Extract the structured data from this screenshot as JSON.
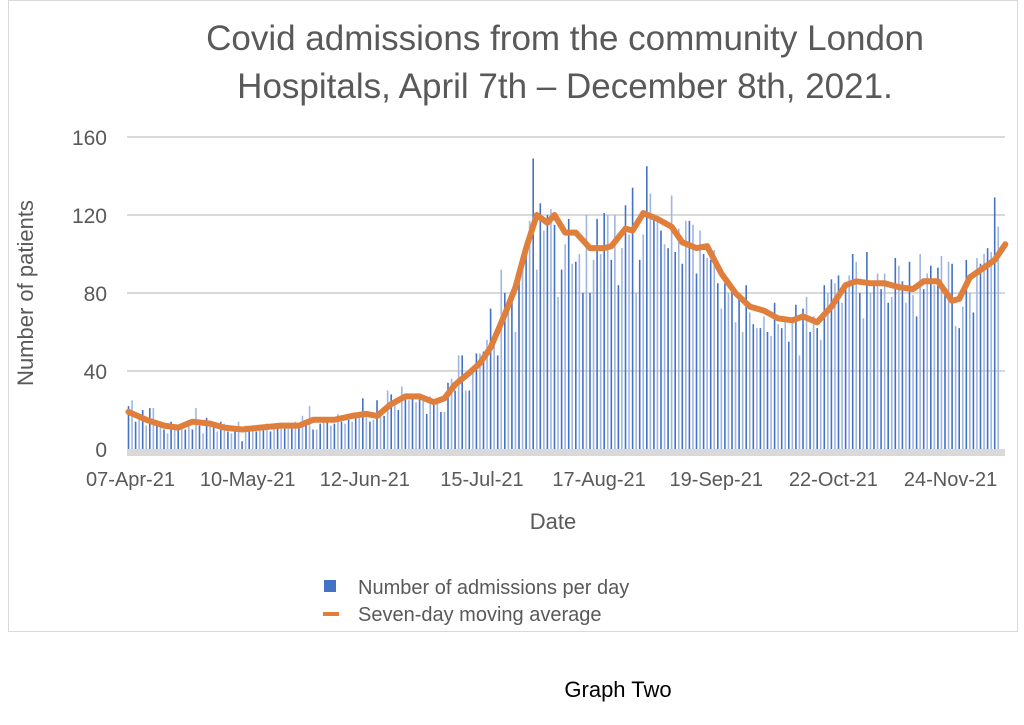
{
  "chart_data": {
    "type": "bar",
    "title_lines": [
      "Covid admissions from the community London",
      "Hospitals, April 7th – December 8th, 2021."
    ],
    "xlabel": "Date",
    "ylabel": "Number of patients",
    "ylim": [
      0,
      160
    ],
    "yticks": [
      0,
      40,
      80,
      120,
      160
    ],
    "grid": true,
    "legend_placement": "bottom",
    "start_date": "2021-04-07",
    "end_date": "2021-12-08",
    "xtick_labels": [
      "07-Apr-21",
      "10-May-21",
      "12-Jun-21",
      "15-Jul-21",
      "17-Aug-21",
      "19-Sep-21",
      "22-Oct-21",
      "24-Nov-21"
    ],
    "xtick_dates": [
      "2021-04-07",
      "2021-05-10",
      "2021-06-12",
      "2021-07-15",
      "2021-08-17",
      "2021-09-19",
      "2021-10-22",
      "2021-11-24"
    ],
    "colors": {
      "bars": "#4472c4",
      "bars_alt": "#9fb5e2",
      "moving_average": "#e07f3c",
      "text": "#595959",
      "grid": "#d9d9d9"
    },
    "series": [
      {
        "name": "Number of admissions per day",
        "type": "bar",
        "values": [
          22,
          25,
          14,
          16,
          20,
          12,
          21,
          21,
          13,
          12,
          10,
          8,
          14,
          12,
          12,
          11,
          10,
          14,
          10,
          21,
          12,
          8,
          16,
          12,
          11,
          9,
          14,
          13,
          9,
          8,
          11,
          14,
          4,
          12,
          11,
          12,
          9,
          11,
          10,
          13,
          9,
          12,
          11,
          13,
          12,
          12,
          11,
          14,
          12,
          17,
          15,
          22,
          10,
          10,
          13,
          15,
          16,
          12,
          13,
          18,
          14,
          13,
          15,
          14,
          16,
          18,
          26,
          17,
          14,
          15,
          25,
          18,
          17,
          30,
          28,
          24,
          20,
          32,
          26,
          25,
          27,
          24,
          28,
          26,
          18,
          27,
          25,
          26,
          19,
          19,
          34,
          36,
          30,
          48,
          48,
          30,
          30,
          42,
          49,
          49,
          50,
          56,
          72,
          58,
          48,
          92,
          80,
          77,
          78,
          60,
          88,
          97,
          107,
          117,
          149,
          92,
          126,
          112,
          120,
          123,
          115,
          78,
          92,
          105,
          118,
          95,
          96,
          100,
          80,
          120,
          80,
          97,
          118,
          100,
          121,
          120,
          97,
          120,
          84,
          103,
          125,
          110,
          134,
          80,
          97,
          110,
          145,
          131,
          120,
          117,
          112,
          105,
          103,
          130,
          101,
          113,
          95,
          117,
          117,
          115,
          90,
          112,
          100,
          98,
          97,
          102,
          85,
          72,
          85,
          80,
          82,
          65,
          80,
          60,
          84,
          70,
          64,
          62,
          62,
          68,
          60,
          58,
          75,
          64,
          62,
          65,
          55,
          67,
          74,
          48,
          72,
          78,
          60,
          68,
          62,
          56,
          84,
          80,
          87,
          85,
          89,
          75,
          83,
          89,
          100,
          96,
          80,
          67,
          101,
          80,
          86,
          90,
          82,
          90,
          75,
          78,
          98,
          94,
          86,
          75,
          96,
          79,
          68,
          100,
          82,
          90,
          94,
          84,
          93,
          99,
          83,
          96,
          95,
          63,
          62,
          73,
          97,
          80,
          70,
          98,
          95,
          100,
          103,
          101,
          129,
          114
        ]
      },
      {
        "name": "Seven-day moving average",
        "type": "line",
        "points": [
          [
            "2021-04-13",
            19
          ],
          [
            "2021-04-18",
            15
          ],
          [
            "2021-04-23",
            12
          ],
          [
            "2021-04-27",
            11
          ],
          [
            "2021-05-01",
            14
          ],
          [
            "2021-05-06",
            13
          ],
          [
            "2021-05-10",
            11
          ],
          [
            "2021-05-15",
            10
          ],
          [
            "2021-05-20",
            11
          ],
          [
            "2021-05-26",
            12
          ],
          [
            "2021-05-31",
            12
          ],
          [
            "2021-06-04",
            15
          ],
          [
            "2021-06-10",
            15
          ],
          [
            "2021-06-15",
            17
          ],
          [
            "2021-06-19",
            18
          ],
          [
            "2021-06-22",
            17
          ],
          [
            "2021-06-26",
            23
          ],
          [
            "2021-06-30",
            27
          ],
          [
            "2021-07-04",
            27
          ],
          [
            "2021-07-08",
            24
          ],
          [
            "2021-07-11",
            26
          ],
          [
            "2021-07-14",
            33
          ],
          [
            "2021-07-18",
            39
          ],
          [
            "2021-07-21",
            44
          ],
          [
            "2021-07-24",
            52
          ],
          [
            "2021-07-28",
            69
          ],
          [
            "2021-07-31",
            83
          ],
          [
            "2021-08-03",
            103
          ],
          [
            "2021-08-06",
            120
          ],
          [
            "2021-08-09",
            116
          ],
          [
            "2021-08-11",
            120
          ],
          [
            "2021-08-14",
            111
          ],
          [
            "2021-08-17",
            111
          ],
          [
            "2021-08-21",
            103
          ],
          [
            "2021-08-25",
            103
          ],
          [
            "2021-08-27",
            104
          ],
          [
            "2021-08-31",
            113
          ],
          [
            "2021-09-02",
            112
          ],
          [
            "2021-09-05",
            121
          ],
          [
            "2021-09-09",
            118
          ],
          [
            "2021-09-13",
            114
          ],
          [
            "2021-09-16",
            106
          ],
          [
            "2021-09-20",
            103
          ],
          [
            "2021-09-23",
            104
          ],
          [
            "2021-09-27",
            90
          ],
          [
            "2021-10-01",
            80
          ],
          [
            "2021-10-05",
            73
          ],
          [
            "2021-10-09",
            71
          ],
          [
            "2021-10-13",
            67
          ],
          [
            "2021-10-17",
            66
          ],
          [
            "2021-10-20",
            68
          ],
          [
            "2021-10-24",
            65
          ],
          [
            "2021-10-28",
            73
          ],
          [
            "2021-11-01",
            84
          ],
          [
            "2021-11-04",
            86
          ],
          [
            "2021-11-08",
            85
          ],
          [
            "2021-11-12",
            85
          ],
          [
            "2021-11-16",
            83
          ],
          [
            "2021-11-20",
            82
          ],
          [
            "2021-11-23",
            86
          ],
          [
            "2021-11-27",
            86
          ],
          [
            "2021-12-01",
            76
          ],
          [
            "2021-12-03",
            77
          ],
          [
            "2021-12-06",
            88
          ],
          [
            "2021-12-10",
            93
          ],
          [
            "2021-12-13",
            97
          ],
          [
            "2021-12-16",
            105
          ]
        ]
      }
    ]
  },
  "caption": "Graph Two"
}
